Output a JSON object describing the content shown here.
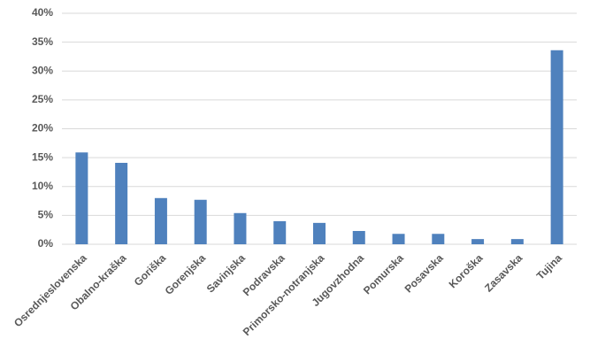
{
  "chart_data": {
    "type": "bar",
    "categories": [
      "Osrednjeslovenska",
      "Obalno-kraška",
      "Goriška",
      "Gorenjska",
      "Savinjska",
      "Podravska",
      "Primorsko-notranjska",
      "Jugovzhodna",
      "Pomurska",
      "Posavska",
      "Koroška",
      "Zasavska",
      "Tujina"
    ],
    "values": [
      15.9,
      14.1,
      8.0,
      7.7,
      5.4,
      4.0,
      3.7,
      2.3,
      1.8,
      1.8,
      0.9,
      0.9,
      33.6
    ],
    "color": "#4f81bd",
    "ylim": [
      0,
      40
    ],
    "yticks": [
      {
        "value": 0,
        "label": "0%"
      },
      {
        "value": 5,
        "label": "5%"
      },
      {
        "value": 10,
        "label": "10%"
      },
      {
        "value": 15,
        "label": "15%"
      },
      {
        "value": 20,
        "label": "20%"
      },
      {
        "value": 25,
        "label": "25%"
      },
      {
        "value": 30,
        "label": "30%"
      },
      {
        "value": 35,
        "label": "35%"
      },
      {
        "value": 40,
        "label": "40%"
      }
    ],
    "grid": true
  }
}
